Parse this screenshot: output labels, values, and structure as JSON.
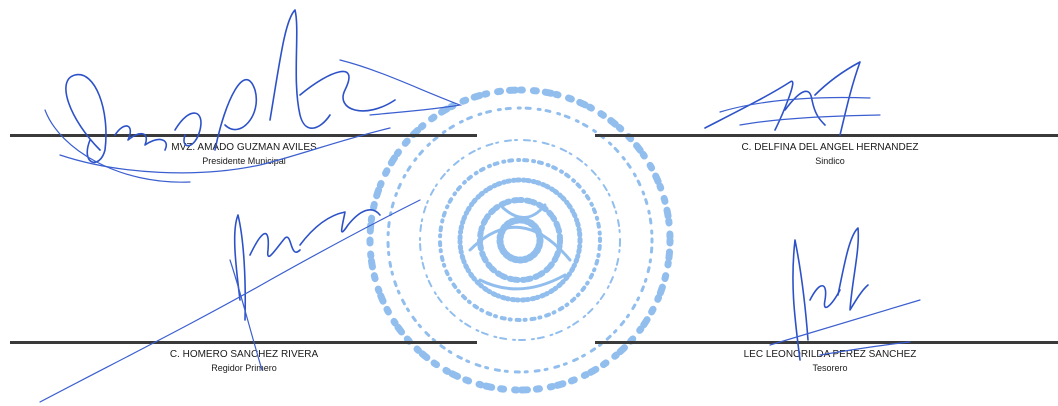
{
  "signatories": [
    {
      "name": "MVZ. AMADO GUZMAN AVILES",
      "role": "Presidente Municipal"
    },
    {
      "name": "C. DELFINA DEL ANGEL HERNANDEZ",
      "role": "Sindico"
    },
    {
      "name": "C. HOMERO SANCHEZ RIVERA",
      "role": "Regidor Primero"
    },
    {
      "name": "LEC LEONORILDA PEREZ SANCHEZ",
      "role": "Tesorero"
    }
  ],
  "colors": {
    "ink": "#2d52c8",
    "seal": "#7fb3ec",
    "line": "#3a3a3a"
  }
}
